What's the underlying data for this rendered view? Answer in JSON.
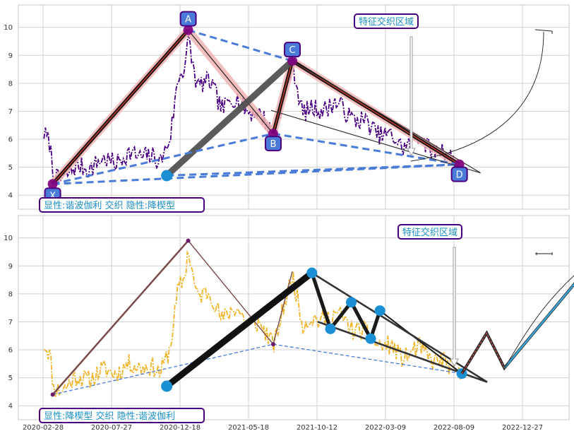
{
  "chart_data": [
    {
      "type": "line",
      "panel": "top",
      "ylim": [
        3.5,
        10.8
      ],
      "yticks": [
        "4",
        "5",
        "6",
        "7",
        "8",
        "9",
        "10"
      ],
      "series": [
        {
          "color": "#4b0082",
          "style": "dash-dot"
        }
      ],
      "points": [
        {
          "label": "X",
          "date": "2020-03-20",
          "value": 4.4
        },
        {
          "label": "A",
          "date": "2021-01-05",
          "value": 9.9
        },
        {
          "label": "B",
          "date": "2021-07-10",
          "value": 6.2
        },
        {
          "label": "C",
          "date": "2021-08-20",
          "value": 8.8
        },
        {
          "label": "D",
          "date": "2022-08-20",
          "value": 5.1
        }
      ],
      "extra_marker": {
        "date": "2020-11-20",
        "value": 4.7
      },
      "annotation": "特征交织区域",
      "legend_text": "显性:谐波伽利 交织 隐性:降楔型"
    },
    {
      "type": "line",
      "panel": "bottom",
      "ylim": [
        3.5,
        10.8
      ],
      "yticks": [
        "4",
        "5",
        "6",
        "7",
        "8",
        "9",
        "10"
      ],
      "xticks": [
        "2020-02-28",
        "2020-07-27",
        "2020-12-18",
        "2021-05-18",
        "2021-10-12",
        "2022-03-09",
        "2022-08-09",
        "2022-12-27"
      ],
      "series": [
        {
          "color": "#f0b429",
          "style": "dash-dot"
        }
      ],
      "wedge_points": [
        {
          "date": "2021-10-01",
          "value": 8.75
        },
        {
          "date": "2021-11-10",
          "value": 6.75
        },
        {
          "date": "2021-12-25",
          "value": 7.7
        },
        {
          "date": "2022-02-05",
          "value": 6.4
        },
        {
          "date": "2022-02-25",
          "value": 7.4
        },
        {
          "date": "2022-08-25",
          "value": 5.15
        }
      ],
      "start_marker": {
        "date": "2020-11-20",
        "value": 4.7
      },
      "projection": [
        {
          "date": "2022-08-25",
          "value": 5.15
        },
        {
          "date": "2022-10-15",
          "value": 6.6
        },
        {
          "date": "2022-11-20",
          "value": 5.35
        },
        {
          "date": "2023-06-01",
          "value": 9.4
        }
      ],
      "annotation": "特征交织区域",
      "legend_text": "显性:降楔型 交织 隐性:谐波伽利"
    }
  ]
}
